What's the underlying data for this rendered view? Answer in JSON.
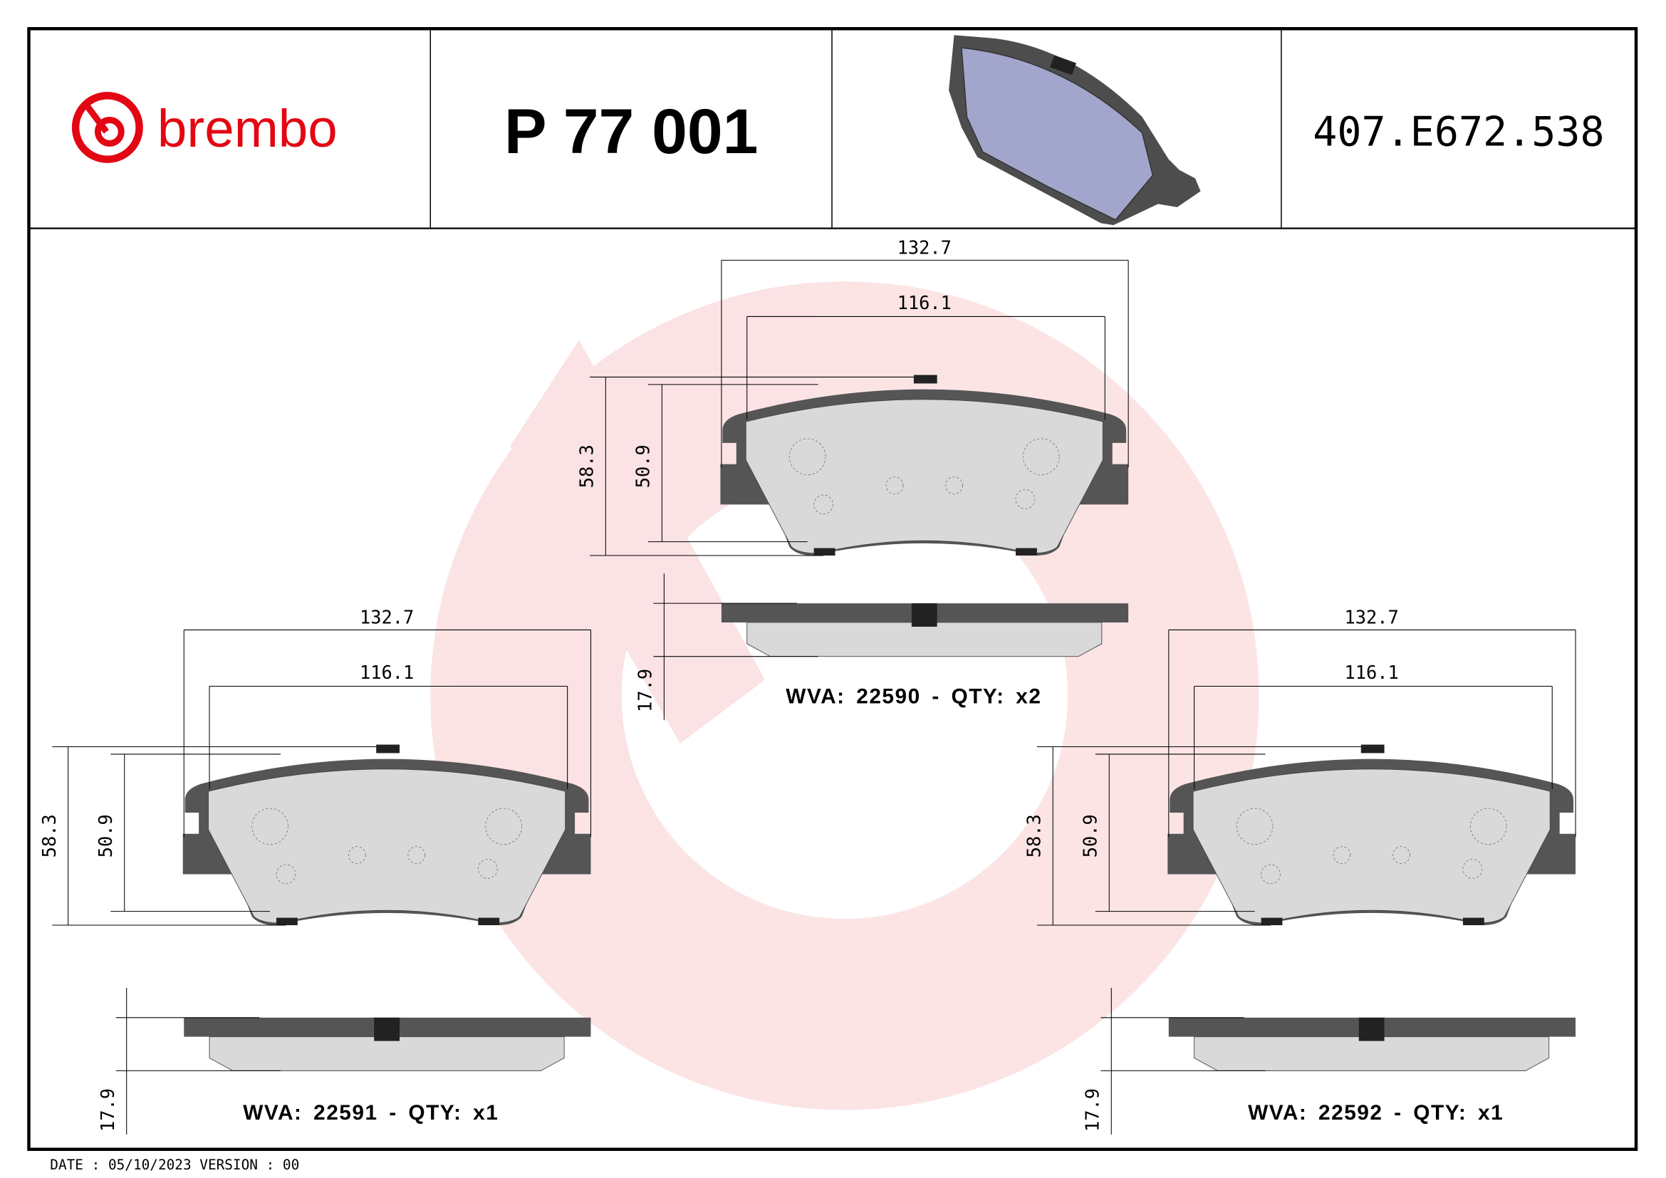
{
  "header": {
    "brand": "brembo",
    "part_number": "P 77 001",
    "reference": "407.E672.538"
  },
  "colors": {
    "brand_red": "#e30613",
    "backplate": "#555555",
    "friction": "#d9d9d9",
    "preview_pad": "#a3a6cc"
  },
  "assemblies": [
    {
      "width_outer": "132.7",
      "width_inner": "116.1",
      "height_outer": "58.3",
      "height_inner": "50.9",
      "thickness": "17.9",
      "wva": "WVA: 22590 - QTY: x2"
    },
    {
      "width_outer": "132.7",
      "width_inner": "116.1",
      "height_outer": "58.3",
      "height_inner": "50.9",
      "thickness": "17.9",
      "wva": "WVA: 22591 - QTY: x1"
    },
    {
      "width_outer": "132.7",
      "width_inner": "116.1",
      "height_outer": "58.3",
      "height_inner": "50.9",
      "thickness": "17.9",
      "wva": "WVA: 22592 - QTY: x1"
    }
  ],
  "footer": "DATE : 05/10/2023 VERSION : 00"
}
